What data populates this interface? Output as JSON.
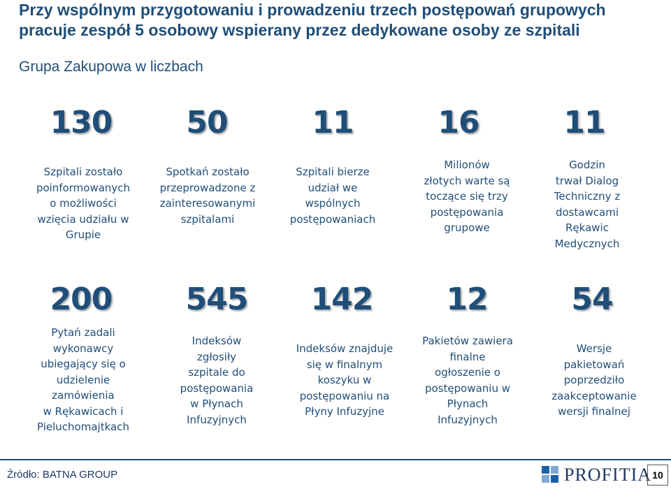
{
  "header": {
    "title": "Przy wspólnym przygotowaniu i prowadzeniu trzech postępowań grupowych pracuje zespół 5 osobowy wspierany przez dedykowane osoby ze szpitali",
    "subtitle": "Grupa Zakupowa w liczbach"
  },
  "row1": [
    {
      "number": "130",
      "description": "Szpitali zostało\npoinformowanych\no możliwości\nwzięcia udziału w\nGrupie"
    },
    {
      "number": "50",
      "description": "Spotkań zostało\nprzeprowadzone z\nzainteresowanymi\nszpitalami"
    },
    {
      "number": "11",
      "description": "Szpitali bierze\nudział we\nwspólnych\npostępowaniach"
    },
    {
      "number": "16",
      "description": "Milionów\nzłotych warte są\ntoczące się  trzy\npostępowania\ngrupowe"
    },
    {
      "number": "11",
      "description": "Godzin\ntrwał Dialog\nTechniczny z\ndostawcami\nRękawic\nMedycznych"
    }
  ],
  "row2": [
    {
      "number": "200",
      "description": "Pytań zadali\nwykonawcy\nubiegający się o\nudzielenie\nzamówienia\nw Rękawicach i\nPieluchomajtkach"
    },
    {
      "number": "545",
      "description": "Indeksów\nzgłosiły\nszpitale do\npostępowania\nw Płynach\nInfuzyjnych"
    },
    {
      "number": "142",
      "description": "Indeksów znajduje\nsię w finalnym\nkoszyku w\npostępowaniu na\nPłyny Infuzyjne"
    },
    {
      "number": "12",
      "description": "Pakietów zawiera\nfinalne\nogłoszenie o\npostępowaniu w\nPłynach\nInfuzyjnych"
    },
    {
      "number": "54",
      "description": "Wersje\npakietowań\npoprzedziło\nzaakceptowanie\nwersji finalnej"
    }
  ],
  "footer": {
    "source": "Źródło: BATNA GROUP",
    "logo_text": "PROFITIA",
    "page_number": "10"
  },
  "colors": {
    "primary": "#1f4e79",
    "logo_blue": "#1f5fa8",
    "logo_light": "#7fa7d4"
  }
}
